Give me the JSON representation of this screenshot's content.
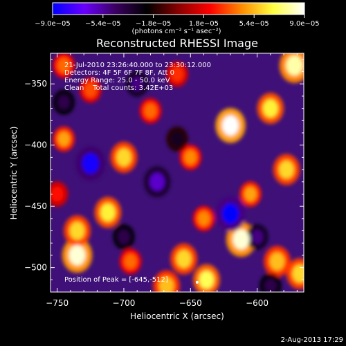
{
  "chart_data": {
    "type": "heatmap",
    "title": "Reconstructed RHESSI Image",
    "xlabel": "Heliocentric X (arcsec)",
    "ylabel": "Heliocentric Y (arcsec)",
    "xlim": [
      -755,
      -565
    ],
    "ylim": [
      -520,
      -325
    ],
    "x_ticks": [
      -750,
      -700,
      -650,
      -600
    ],
    "x_tick_labels": [
      "−750",
      "−700",
      "−650",
      "−600"
    ],
    "y_ticks": [
      -350,
      -400,
      -450,
      -500
    ],
    "y_tick_labels": [
      "−350",
      "−400",
      "−450",
      "−500"
    ],
    "colorbar": {
      "min": -9e-05,
      "max": 9e-05,
      "tick_labels": [
        "−9.0e−05",
        "−5.4e−05",
        "−1.8e−05",
        "1.8e−05",
        "5.4e−05",
        "9.0e−05"
      ],
      "unit_label": "(photons cm⁻² s⁻¹ asec⁻²)",
      "colors": [
        "#0000ff",
        "#6a00ff",
        "#3a0060",
        "#000000",
        "#8a0000",
        "#ff0000",
        "#ff8a00",
        "#ffff40",
        "#ffffff"
      ]
    },
    "annotations": {
      "time_range": "21-Jul-2010 23:26:40.000 to 23:30:12.000",
      "detectors": "Detectors: 4F 5F 6F 7F 8F, Att 0",
      "energy_range": "Energy Range: 25.0 - 50.0 keV",
      "algorithm": "Clean    Total counts: 3.42E+03",
      "peak": "Position of Peak = [-645,-512]"
    },
    "peak": [
      -645,
      -512
    ],
    "blobs": [
      {
        "x": -735,
        "y": -490,
        "value": 8.5e-05
      },
      {
        "x": -735,
        "y": -470,
        "value": 6e-05
      },
      {
        "x": -712,
        "y": -455,
        "value": 6.5e-05
      },
      {
        "x": -700,
        "y": -410,
        "value": 6e-05
      },
      {
        "x": -680,
        "y": -372,
        "value": 4e-05
      },
      {
        "x": -660,
        "y": -342,
        "value": 3e-05
      },
      {
        "x": -650,
        "y": -410,
        "value": 4.5e-05
      },
      {
        "x": -640,
        "y": -460,
        "value": 4.5e-05
      },
      {
        "x": -655,
        "y": -493,
        "value": 6e-05
      },
      {
        "x": -638,
        "y": -510,
        "value": 7e-05
      },
      {
        "x": -620,
        "y": -384,
        "value": 9e-05
      },
      {
        "x": -605,
        "y": -440,
        "value": 5e-05
      },
      {
        "x": -590,
        "y": -370,
        "value": 6.5e-05
      },
      {
        "x": -578,
        "y": -420,
        "value": 6e-05
      },
      {
        "x": -572,
        "y": -335,
        "value": 8e-05
      },
      {
        "x": -612,
        "y": -477,
        "value": 8.5e-05
      },
      {
        "x": -585,
        "y": -495,
        "value": 5.5e-05
      },
      {
        "x": -568,
        "y": -505,
        "value": 6e-05
      },
      {
        "x": -745,
        "y": -395,
        "value": 5e-05
      },
      {
        "x": -745,
        "y": -335,
        "value": 4e-05
      },
      {
        "x": -725,
        "y": -355,
        "value": 3.5e-05
      },
      {
        "x": -695,
        "y": -495,
        "value": 4e-05
      },
      {
        "x": -668,
        "y": -515,
        "value": 5.5e-05
      },
      {
        "x": -750,
        "y": -440,
        "value": 2.5e-05
      },
      {
        "x": -725,
        "y": -415,
        "value": -8.5e-05
      },
      {
        "x": -675,
        "y": -430,
        "value": -6e-05
      },
      {
        "x": -620,
        "y": -456,
        "value": -9e-05
      },
      {
        "x": -690,
        "y": -350,
        "value": -5e-05
      },
      {
        "x": -745,
        "y": -365,
        "value": -4e-05
      },
      {
        "x": -700,
        "y": -475,
        "value": -4e-05
      },
      {
        "x": -600,
        "y": -475,
        "value": -5e-05
      },
      {
        "x": -660,
        "y": -395,
        "value": -3e-05
      },
      {
        "x": -590,
        "y": -515,
        "value": -4e-05
      }
    ]
  },
  "footer": {
    "date": "2-Aug-2013 17:29"
  }
}
